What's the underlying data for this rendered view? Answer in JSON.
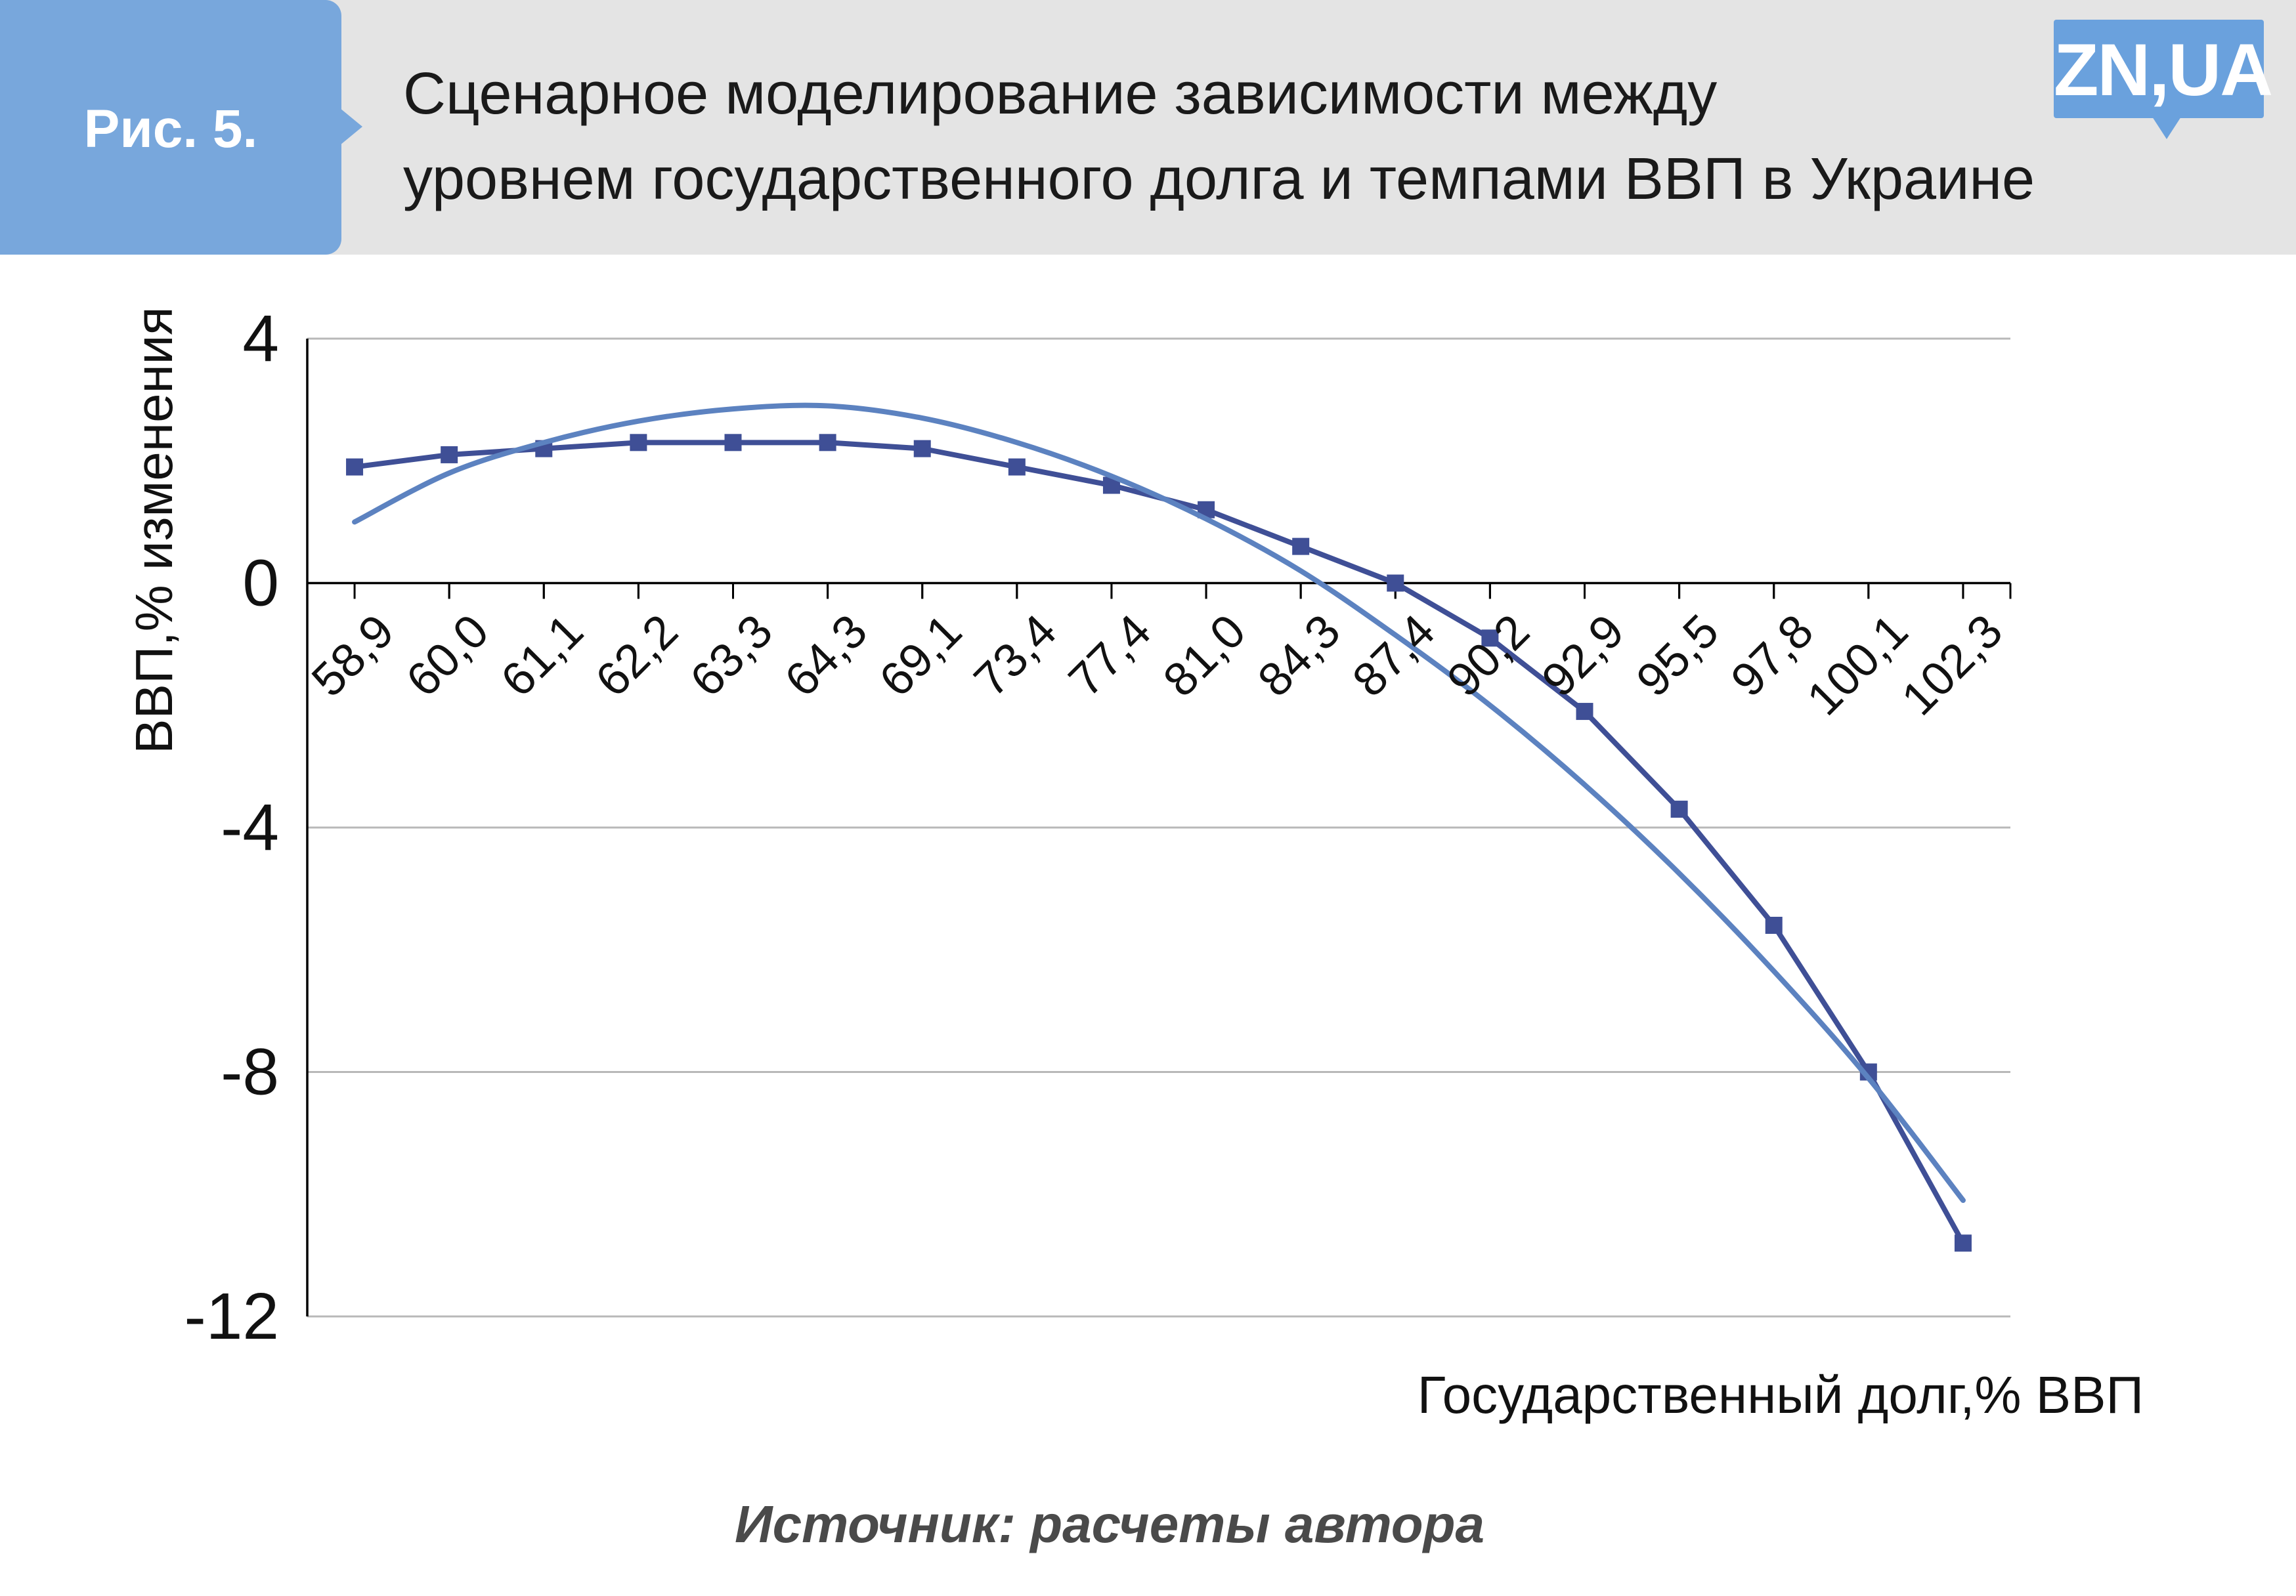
{
  "header": {
    "figure_label": "Рис. 5.",
    "title_line1": "Сценарное моделирование зависимости между",
    "title_line2": "уровнем государственного долга и темпами ВВП в Украине",
    "logo": "ZN,UA"
  },
  "footer": {
    "source": "Источник: расчеты автора"
  },
  "colors": {
    "header_bg": "#e4e4e4",
    "badge_bg": "#78a7dc",
    "logo_bg": "#6aa1dd",
    "series_actual": "#3f4f96",
    "series_trend": "#5c82c0",
    "grid": "#b8b8b8",
    "axis": "#000000"
  },
  "chart_data": {
    "type": "line",
    "title": "",
    "xlabel": "Государственный долг,% ВВП",
    "ylabel": "ВВП,% изменения",
    "ylim": [
      -12,
      4
    ],
    "yticks": [
      4,
      0,
      -4,
      -8,
      -12
    ],
    "grid": "horizontal",
    "x_axis_at": 0,
    "categories": [
      "58,9",
      "60,0",
      "61,1",
      "62,2",
      "63,3",
      "64,3",
      "69,1",
      "73,4",
      "77,4",
      "81,0",
      "84,3",
      "87,4",
      "90,2",
      "92,9",
      "95,5",
      "97,8",
      "100,1",
      "102,3"
    ],
    "series": [
      {
        "kind": "line-with-square-markers",
        "color": "#3f4f96",
        "values": [
          1.9,
          2.1,
          2.2,
          2.3,
          2.3,
          2.3,
          2.2,
          1.9,
          1.6,
          1.2,
          0.6,
          0.0,
          -0.9,
          -2.1,
          -3.7,
          -5.6,
          -8.0,
          -10.8
        ]
      },
      {
        "kind": "smooth-trend",
        "color": "#5c82c0",
        "values": [
          1.0,
          1.8,
          2.3,
          2.65,
          2.85,
          2.9,
          2.7,
          2.3,
          1.75,
          1.05,
          0.2,
          -0.85,
          -2.0,
          -3.3,
          -4.75,
          -6.35,
          -8.1,
          -10.1
        ]
      }
    ]
  }
}
